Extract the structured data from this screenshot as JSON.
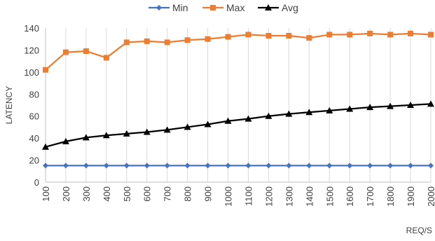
{
  "chart_data": {
    "type": "line",
    "title": "",
    "xlabel": "REQ/S",
    "ylabel": "LATENCY",
    "x": [
      100,
      200,
      300,
      400,
      500,
      600,
      700,
      800,
      900,
      1000,
      1100,
      1200,
      1300,
      1400,
      1500,
      1600,
      1700,
      1800,
      1900,
      2000
    ],
    "ylim": [
      0,
      140
    ],
    "yticks": [
      0,
      20,
      40,
      60,
      80,
      100,
      120,
      140
    ],
    "grid": "vertical",
    "legend": "top-center",
    "series": [
      {
        "name": "Min",
        "color": "#4472c4",
        "marker": "diamond",
        "values": [
          15,
          15,
          15,
          15,
          15,
          15,
          15,
          15,
          15,
          15,
          15,
          15,
          15,
          15,
          15,
          15,
          15,
          15,
          15,
          15
        ]
      },
      {
        "name": "Max",
        "color": "#ed7d31",
        "marker": "square",
        "values": [
          102,
          118,
          119,
          113,
          127,
          128,
          127,
          129,
          130,
          132,
          134,
          133,
          133,
          131,
          134,
          134,
          135,
          134,
          135,
          134
        ]
      },
      {
        "name": "Avg",
        "color": "#000000",
        "marker": "triangle",
        "values": [
          32,
          37,
          40.5,
          42.5,
          44,
          45.5,
          47.5,
          50,
          52.5,
          55.5,
          57.5,
          60,
          62,
          63.5,
          65,
          66.5,
          68,
          69,
          70,
          71
        ]
      }
    ]
  }
}
